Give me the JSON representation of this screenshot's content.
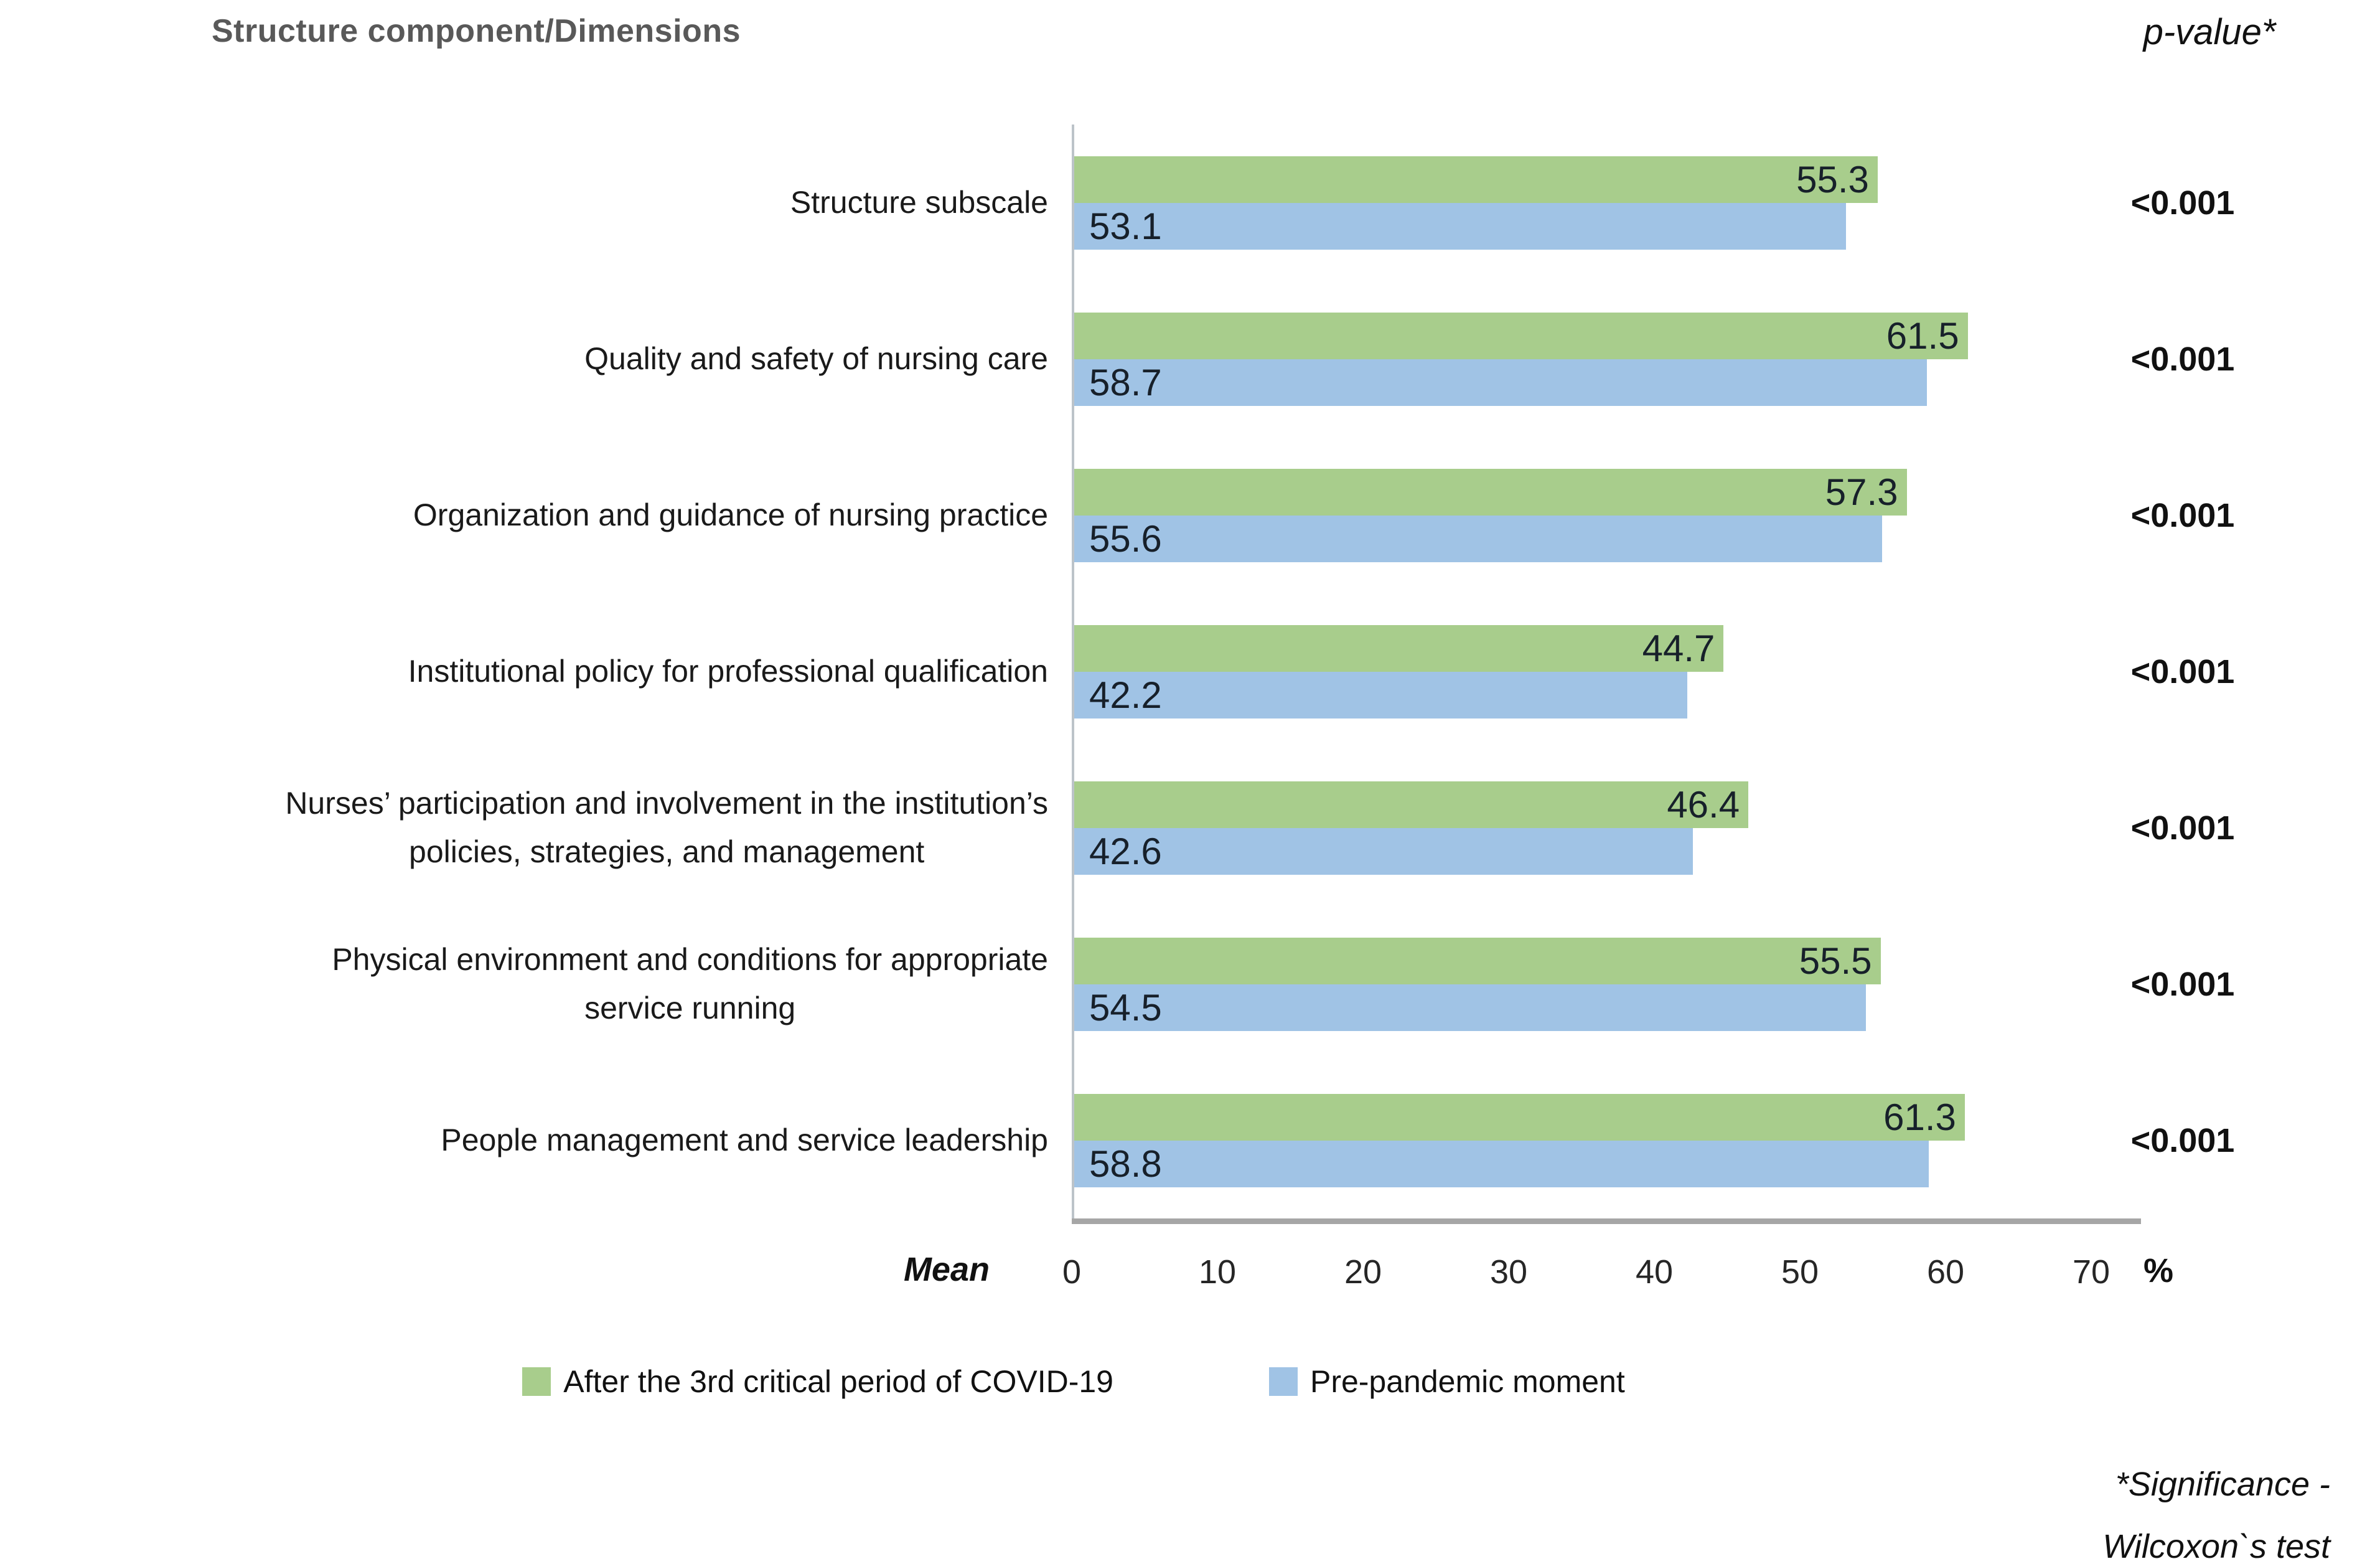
{
  "title": "Structure component/Dimensions",
  "pvalue_header": "p-value*",
  "axis": {
    "mean_label": "Mean",
    "unit_label": "%",
    "min": 0,
    "max": 70,
    "ticks": [
      "0",
      "10",
      "20",
      "30",
      "40",
      "50",
      "60",
      "70"
    ]
  },
  "legend": {
    "after_label": "After the 3rd critical period of COVID-19",
    "pre_label": "Pre-pandemic moment"
  },
  "footnote": {
    "line1": "*Significance -",
    "line2": "Wilcoxon`s test"
  },
  "colors": {
    "after_green": "#a8cd8c",
    "pre_blue": "#a0c3e5",
    "title_gray": "#595959",
    "axis_line": "#bcc3c9",
    "axis_bottom": "#a6a6a6"
  },
  "chart_data": {
    "type": "bar",
    "orientation": "horizontal",
    "title": "Structure component/Dimensions",
    "xlabel": "Mean",
    "x_unit": "%",
    "xlim": [
      0,
      70
    ],
    "grid": false,
    "legend_position": "bottom",
    "categories": [
      "Structure subscale",
      "Quality and safety of nursing care",
      "Organization and guidance of nursing practice",
      "Institutional policy for professional qualification",
      "Nurses’ participation and involvement in the institution’s\npolicies, strategies, and management",
      "Physical environment and conditions for appropriate\nservice running",
      "People management and service leadership"
    ],
    "series": [
      {
        "name": "After the 3rd critical period of COVID-19",
        "color": "#a8cd8c",
        "values": [
          55.3,
          61.5,
          57.3,
          44.7,
          46.4,
          55.5,
          61.3
        ]
      },
      {
        "name": "Pre-pandemic moment",
        "color": "#a0c3e5",
        "values": [
          53.1,
          58.7,
          55.6,
          42.2,
          42.6,
          54.5,
          58.8
        ]
      }
    ],
    "p_values": [
      "<0.001",
      "<0.001",
      "<0.001",
      "<0.001",
      "<0.001",
      "<0.001",
      "<0.001"
    ],
    "rows": [
      {
        "label": "Structure subscale",
        "after": 55.3,
        "pre": 53.1,
        "p": "<0.001"
      },
      {
        "label": "Quality and safety of nursing care",
        "after": 61.5,
        "pre": 58.7,
        "p": "<0.001"
      },
      {
        "label": "Organization and guidance of nursing practice",
        "after": 57.3,
        "pre": 55.6,
        "p": "<0.001"
      },
      {
        "label": "Institutional policy for professional qualification",
        "after": 44.7,
        "pre": 42.2,
        "p": "<0.001"
      },
      {
        "label": "Nurses’ participation and involvement in the institution’s\npolicies, strategies, and management",
        "after": 46.4,
        "pre": 42.6,
        "p": "<0.001"
      },
      {
        "label": "Physical environment and conditions for appropriate\nservice running",
        "after": 55.5,
        "pre": 54.5,
        "p": "<0.001"
      },
      {
        "label": "People management and service leadership",
        "after": 61.3,
        "pre": 58.8,
        "p": "<0.001"
      }
    ]
  }
}
